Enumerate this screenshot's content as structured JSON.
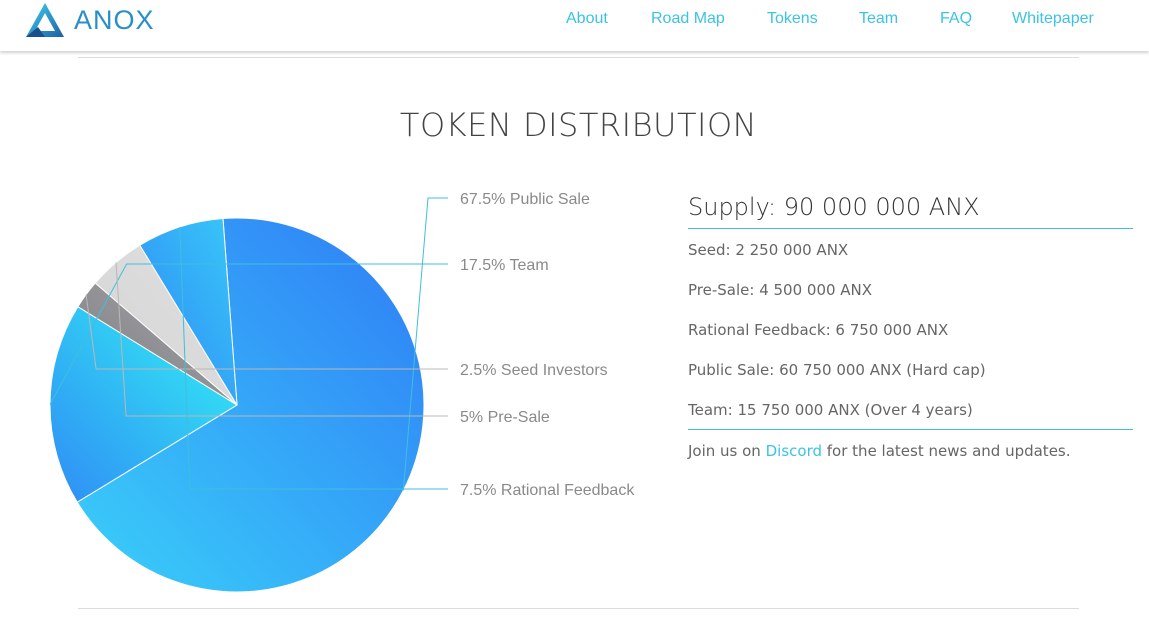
{
  "brand": {
    "name": "ANOX"
  },
  "nav": {
    "items": [
      "About",
      "Road Map",
      "Tokens",
      "Team",
      "FAQ",
      "Whitepaper"
    ]
  },
  "section": {
    "title": "TOKEN DISTRIBUTION"
  },
  "chart_data": {
    "type": "pie",
    "title": "",
    "slices": [
      {
        "label": "67.5% Public Sale",
        "value": 67.5,
        "color_start": "#3ad0f9",
        "color_end": "#2f7cf6"
      },
      {
        "label": "17.5% Team",
        "value": 17.5,
        "color_start": "#2f8cf5",
        "color_end": "#33f2f4"
      },
      {
        "label": "2.5% Seed Investors",
        "value": 2.5,
        "color_start": "#7c7c80",
        "color_end": "#a8a8ac"
      },
      {
        "label": "5% Pre-Sale",
        "value": 5,
        "color_start": "#d4d4d4",
        "color_end": "#e0e0e0"
      },
      {
        "label": "7.5% Rational Feedback",
        "value": 7.5,
        "color_start": "#2f86f6",
        "color_end": "#38c8f8"
      }
    ],
    "legend": "leader-line labels on right"
  },
  "supply": {
    "title": "Supply: 90 000 000 ANX",
    "items": [
      "Seed: 2 250 000 ANX",
      "Pre-Sale: 4 500 000 ANX",
      "Rational Feedback: 6 750 000 ANX",
      "Public Sale: 60 750 000 ANX (Hard cap)",
      "Team: 15 750 000 ANX (Over 4 years)"
    ],
    "join_prefix": "Join us on",
    "join_link": "Discord",
    "join_suffix": "for the latest news and updates."
  },
  "colors": {
    "accent": "#3cc3e3",
    "brand": "#2a8fc9"
  }
}
